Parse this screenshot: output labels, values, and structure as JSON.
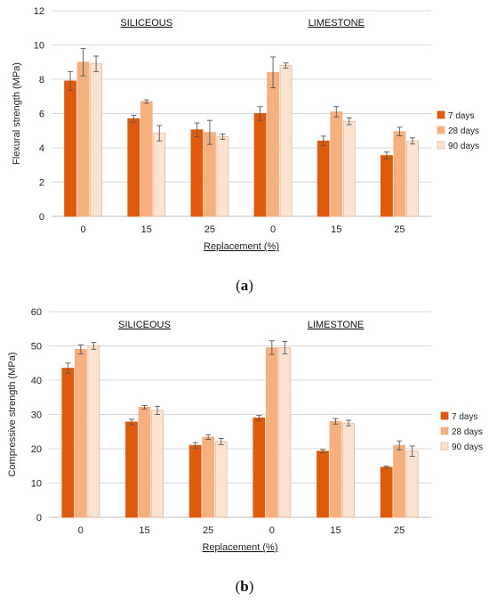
{
  "chart_data": [
    {
      "type": "bar",
      "panel_label": "a",
      "ylabel": "Flexural strength (MPa)",
      "xlabel": "Replacement (%)",
      "ylim": [
        0,
        12
      ],
      "yticks": [
        0,
        2,
        4,
        6,
        8,
        10,
        12
      ],
      "grid": true,
      "legend_position": "right",
      "groups": [
        "SILICEOUS",
        "LIMESTONE"
      ],
      "categories": [
        "0",
        "15",
        "25",
        "0",
        "15",
        "25"
      ],
      "series": [
        {
          "name": "7 days",
          "color": "#e05a0c",
          "values": [
            7.9,
            5.7,
            5.05,
            6.0,
            4.4,
            3.55
          ],
          "errors": [
            0.55,
            0.2,
            0.4,
            0.4,
            0.28,
            0.2
          ]
        },
        {
          "name": "28 days",
          "color": "#f6b07d",
          "values": [
            9.0,
            6.7,
            4.9,
            8.4,
            6.1,
            4.95
          ],
          "errors": [
            0.8,
            0.1,
            0.7,
            0.9,
            0.3,
            0.25
          ]
        },
        {
          "name": "90 days",
          "color": "#fbe3d2",
          "values": [
            8.9,
            4.85,
            4.65,
            8.8,
            5.55,
            4.4
          ],
          "errors": [
            0.45,
            0.45,
            0.15,
            0.15,
            0.2,
            0.18
          ]
        }
      ]
    },
    {
      "type": "bar",
      "panel_label": "b",
      "ylabel": "Compressive strength (MPa)",
      "xlabel": "Replacement (%)",
      "ylim": [
        0,
        60
      ],
      "yticks": [
        0,
        10,
        20,
        30,
        40,
        50,
        60
      ],
      "grid": true,
      "legend_position": "right",
      "groups": [
        "SILICEOUS",
        "LIMESTONE"
      ],
      "categories": [
        "0",
        "15",
        "25",
        "0",
        "15",
        "25"
      ],
      "series": [
        {
          "name": "7 days",
          "color": "#e05a0c",
          "values": [
            43.5,
            27.8,
            21.0,
            29.0,
            19.3,
            14.6
          ],
          "errors": [
            1.5,
            0.8,
            0.8,
            0.7,
            0.5,
            0.3
          ]
        },
        {
          "name": "28 days",
          "color": "#f6b07d",
          "values": [
            49.0,
            32.1,
            23.4,
            49.5,
            28.0,
            21.0
          ],
          "errors": [
            1.3,
            0.5,
            0.7,
            2.0,
            0.8,
            1.3
          ]
        },
        {
          "name": "90 days",
          "color": "#fbe3d2",
          "values": [
            50.0,
            31.2,
            22.1,
            49.5,
            27.5,
            19.3
          ],
          "errors": [
            1.0,
            1.2,
            0.9,
            1.8,
            0.8,
            1.5
          ]
        }
      ]
    }
  ]
}
